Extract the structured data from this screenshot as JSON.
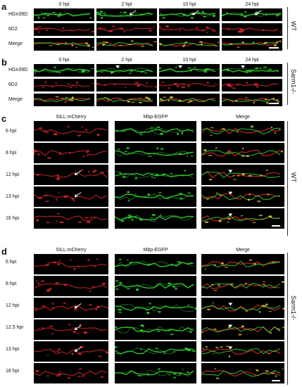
{
  "panels": [
    {
      "id": "a",
      "letter": "a",
      "columns": [
        "0 hpi",
        "2 hpi",
        "10 hpi",
        "24 hpi"
      ],
      "rows": [
        "HGn39D",
        "6D2",
        "Merge"
      ],
      "genotype": "WT"
    },
    {
      "id": "b",
      "letter": "b",
      "columns": [
        "0 hpi",
        "2 hpi",
        "10 hpi",
        "24 hpi"
      ],
      "rows": [
        "HGn39D",
        "6D2",
        "Merge"
      ],
      "genotype": "Sarm1-/-"
    },
    {
      "id": "c",
      "letter": "c",
      "columns": [
        "SILL:mCherry",
        "Mbp-EGFP",
        "Merge"
      ],
      "rows": [
        "6 hpi",
        "8 hpi",
        "12 hpi",
        "13 hpi",
        "16 hpi"
      ],
      "genotype": "WT"
    },
    {
      "id": "d",
      "letter": "d",
      "columns": [
        "SILL:mCherry",
        "Mbp-EGFP",
        "Merge"
      ],
      "rows": [
        "6 hpi",
        "8 hpi",
        "12 hpi",
        "12.5 hpi",
        "13 hpi",
        "16 hpi"
      ],
      "genotype": "Sarm1-/-"
    }
  ],
  "colors": {
    "green": "#2fd12f",
    "red": "#d8262a",
    "merge": "#d9c23a",
    "background": "#000000"
  }
}
